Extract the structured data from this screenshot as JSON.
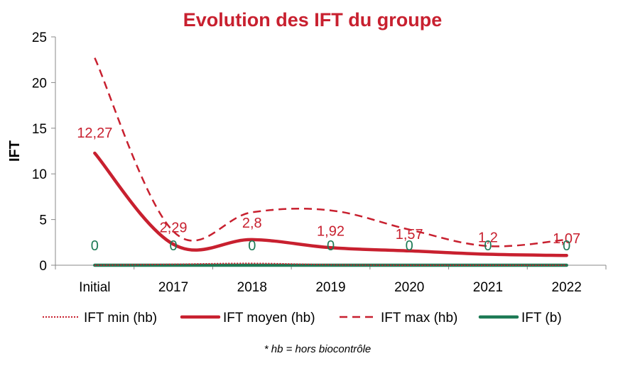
{
  "chart_data": {
    "type": "line",
    "title": "Evolution des IFT du groupe",
    "ylabel": "IFT",
    "xlabel": "",
    "ylim": [
      0,
      25
    ],
    "yticks": [
      0,
      5,
      10,
      15,
      20,
      25
    ],
    "categories": [
      "Initial",
      "2017",
      "2018",
      "2019",
      "2020",
      "2021",
      "2022"
    ],
    "series": [
      {
        "name": "IFT min (hb)",
        "style": "dotted",
        "color": "#c8202f",
        "values": [
          0,
          0.1,
          0.2,
          0.05,
          0,
          0,
          0
        ]
      },
      {
        "name": "IFT moyen (hb)",
        "style": "solid-thick",
        "color": "#c8202f",
        "values": [
          12.27,
          2.29,
          2.8,
          1.92,
          1.57,
          1.2,
          1.07
        ],
        "labels": [
          "12,27",
          "2,29",
          "2,8",
          "1,92",
          "1,57",
          "1,2",
          "1,07"
        ]
      },
      {
        "name": "IFT max (hb)",
        "style": "dashed",
        "color": "#c8202f",
        "values": [
          22.7,
          3.7,
          5.8,
          6.0,
          3.9,
          2.1,
          2.8
        ]
      },
      {
        "name": "IFT (b)",
        "style": "solid-thick",
        "color": "#1d7a55",
        "values": [
          0,
          0,
          0,
          0,
          0,
          0,
          0
        ],
        "labels": [
          "0",
          "0",
          "0",
          "0",
          "0",
          "0",
          "0"
        ]
      }
    ],
    "legend_position": "bottom",
    "grid": false,
    "footnote": "* hb = hors biocontrôle"
  }
}
